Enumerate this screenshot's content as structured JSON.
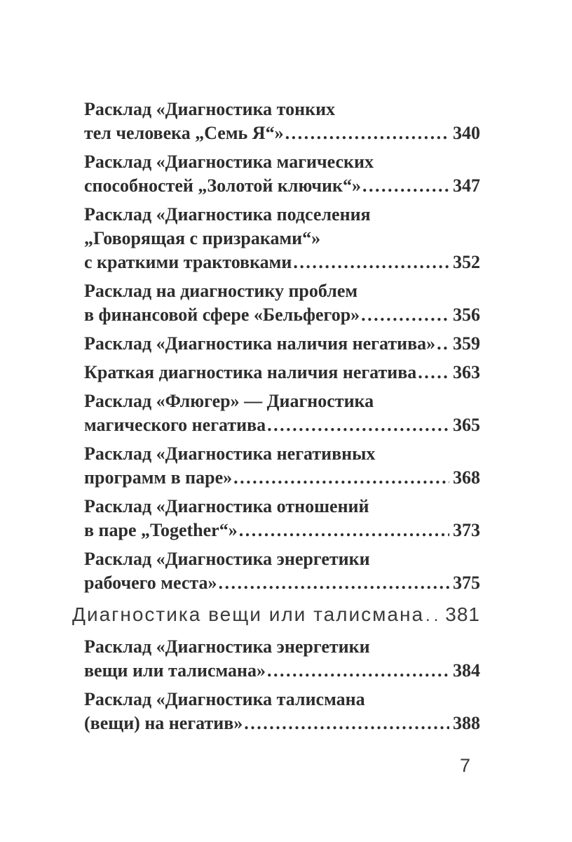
{
  "page": {
    "background": "#ffffff",
    "entry_text_color": "#2d2d2d",
    "heading_text_color": "#3a3a3a"
  },
  "toc": {
    "items": [
      {
        "type": "entry",
        "lines": [
          "Расклад «Диагностика тонких",
          "тел человека „Семь Я“»"
        ],
        "page": "340"
      },
      {
        "type": "entry",
        "lines": [
          "Расклад «Диагностика магических",
          "способностей „Золотой ключик“»"
        ],
        "page": "347"
      },
      {
        "type": "entry",
        "lines": [
          "Расклад «Диагностика подселения",
          "„Говорящая с призраками“»",
          "с краткими трактовками"
        ],
        "page": "352"
      },
      {
        "type": "entry",
        "lines": [
          "Расклад на диагностику проблем",
          "в финансовой сфере «Бельфегор»"
        ],
        "page": "356"
      },
      {
        "type": "entry",
        "lines": [
          "Расклад «Диагностика наличия негатива»"
        ],
        "page": "359"
      },
      {
        "type": "entry",
        "lines": [
          "Краткая диагностика наличия негатива"
        ],
        "page": "363"
      },
      {
        "type": "entry",
        "lines": [
          "Расклад «Флюгер» — Диагностика",
          "магического негатива"
        ],
        "page": "365"
      },
      {
        "type": "entry",
        "lines": [
          "Расклад «Диагностика негативных",
          "программ в паре»"
        ],
        "page": "368"
      },
      {
        "type": "entry",
        "lines": [
          "Расклад «Диагностика отношений",
          "в паре „Together“»"
        ],
        "page": "373"
      },
      {
        "type": "entry",
        "lines": [
          "Расклад «Диагностика энергетики",
          "рабочего места»"
        ],
        "page": "375"
      },
      {
        "type": "section",
        "lines": [
          "Диагностика вещи или талисмана"
        ],
        "page": "381"
      },
      {
        "type": "entry",
        "lines": [
          "Расклад «Диагностика энергетики",
          "вещи или талисмана»"
        ],
        "page": "384"
      },
      {
        "type": "entry",
        "lines": [
          "Расклад «Диагностика талисмана",
          "(вещи) на негатив»"
        ],
        "page": "388"
      }
    ]
  },
  "footer": {
    "page_number": "7"
  }
}
